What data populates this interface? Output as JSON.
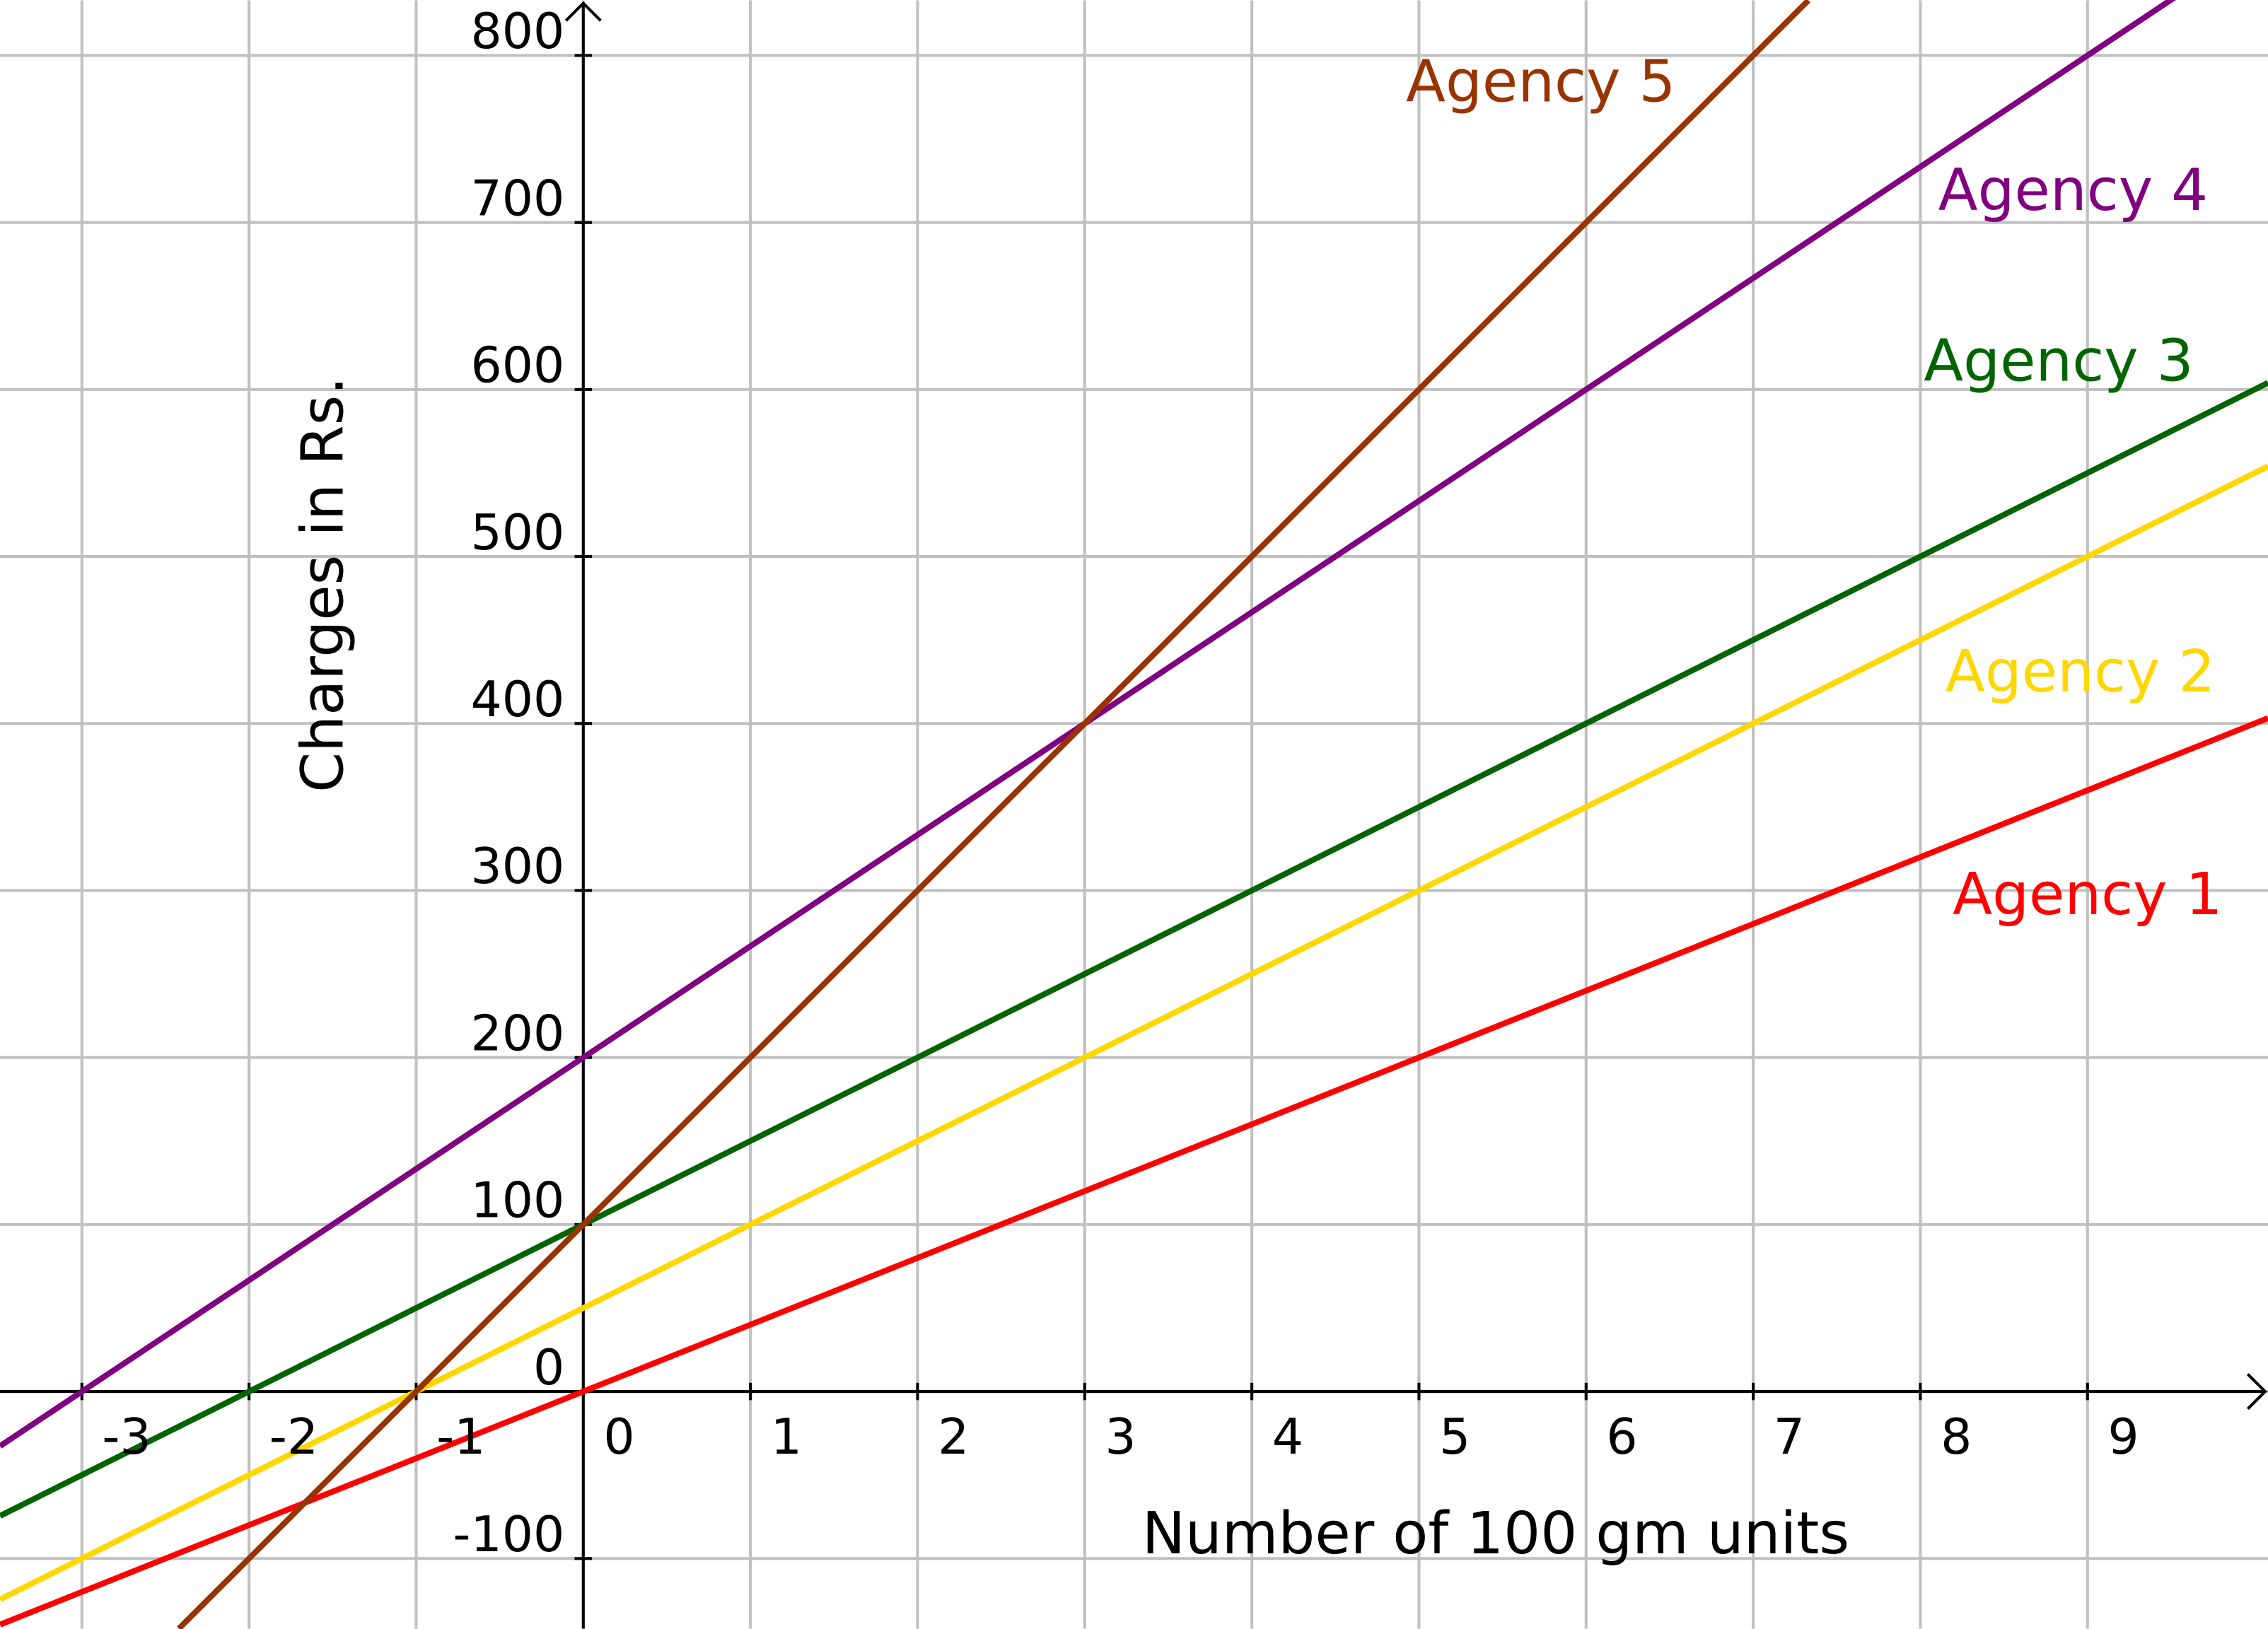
{
  "chart_data": {
    "type": "line",
    "title": "",
    "xlabel": "Number of 100 gm units",
    "ylabel": "Charges in Rs.",
    "xlim": [
      -3.49,
      10.08
    ],
    "ylim": [
      -142,
      833
    ],
    "grid": true,
    "x_ticks": [
      -3,
      -2,
      -1,
      0,
      1,
      2,
      3,
      4,
      5,
      6,
      7,
      8,
      9
    ],
    "x_tick_labels": [
      "-3",
      "-2",
      "-1",
      "0",
      "1",
      "2",
      "3",
      "4",
      "5",
      "6",
      "7",
      "8",
      "9"
    ],
    "y_ticks": [
      -100,
      0,
      100,
      200,
      300,
      400,
      500,
      600,
      700,
      800
    ],
    "y_tick_labels": [
      "-100",
      "0",
      "100",
      "200",
      "300",
      "400",
      "500",
      "600",
      "700",
      "800"
    ],
    "colors": {
      "grid": "#c0c0c0",
      "axis": "#000000"
    },
    "series": [
      {
        "name": "Agency 1",
        "color": "#ff0000",
        "slope": 40,
        "intercept": 0,
        "x": [
          -3.49,
          10.08
        ],
        "y": [
          -139.6,
          403.2
        ]
      },
      {
        "name": "Agency 2",
        "color": "#ffd700",
        "slope": 50,
        "intercept": 50,
        "x": [
          -3.49,
          10.08
        ],
        "y": [
          -124.5,
          554
        ]
      },
      {
        "name": "Agency 3",
        "color": "#006400",
        "slope": 50,
        "intercept": 100,
        "x": [
          -3.49,
          10.08
        ],
        "y": [
          -74.5,
          604
        ]
      },
      {
        "name": "Agency 4",
        "color": "#800080",
        "slope": 66.67,
        "intercept": 200,
        "x": [
          -3.49,
          10.08
        ],
        "y": [
          -32.7,
          872
        ]
      },
      {
        "name": "Agency 5",
        "color": "#993300",
        "slope": 100,
        "intercept": 100,
        "x": [
          -2.42,
          7.33
        ],
        "y": [
          -142,
          833
        ]
      }
    ]
  }
}
